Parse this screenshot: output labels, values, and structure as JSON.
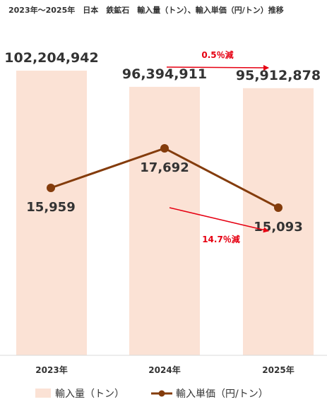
{
  "chart_data": {
    "type": "bar",
    "title": "2023年〜2025年　日本　鉄鉱石　輸入量（トン）、輸入単価（円/トン）推移",
    "categories": [
      "2023年",
      "2024年",
      "2025年"
    ],
    "series": [
      {
        "name": "輸入量（トン）",
        "type": "bar",
        "values": [
          102204942,
          96394911,
          95912878
        ],
        "labels": [
          "102,204,942",
          "96,394,911",
          "95,912,878"
        ],
        "color": "#fbe2d5"
      },
      {
        "name": "輸入単価（円/トン）",
        "type": "line",
        "values": [
          15959,
          17692,
          15093
        ],
        "labels": [
          "15,959",
          "17,692",
          "15,093"
        ],
        "color": "#843c0c"
      }
    ],
    "annotations": [
      {
        "text": "0.5％減",
        "series": "輸入量（トン）",
        "from": "2024年",
        "to": "2025年",
        "color": "#e60012"
      },
      {
        "text": "14.7％減",
        "series": "輸入単価（円/トン）",
        "from": "2024年",
        "to": "2025年",
        "color": "#e60012"
      }
    ],
    "legend_position": "bottom",
    "grid": false
  }
}
